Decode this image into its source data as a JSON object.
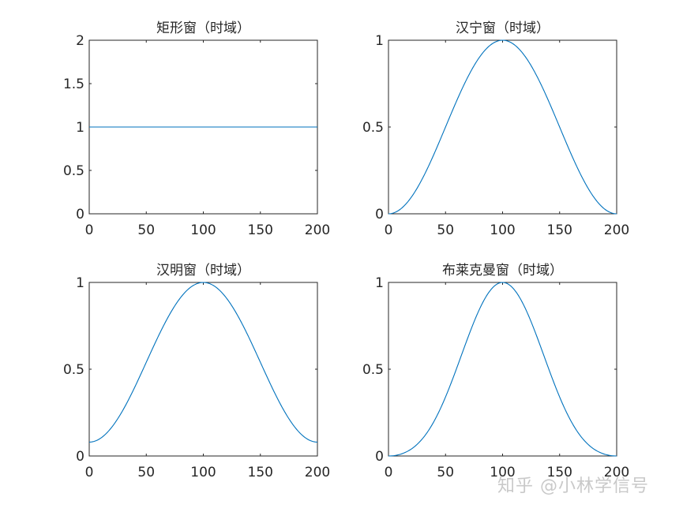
{
  "watermark": "知乎 @小林学信号",
  "chart_data": [
    {
      "type": "line",
      "title": "矩形窗（时域）",
      "window": "rectangular",
      "n_points": 201,
      "x": [
        0,
        200
      ],
      "y": [
        1,
        1
      ],
      "xlim": [
        0,
        200
      ],
      "ylim": [
        0,
        2
      ],
      "xticks": [
        "0",
        "50",
        "100",
        "150",
        "200"
      ],
      "yticks": [
        "0",
        "0.5",
        "1",
        "1.5",
        "2"
      ],
      "color": "#0072BD"
    },
    {
      "type": "line",
      "title": "汉宁窗（时域）",
      "window": "hann",
      "n_points": 201,
      "x": [
        0,
        25,
        50,
        75,
        100,
        125,
        150,
        175,
        200
      ],
      "y": [
        0,
        0.146,
        0.5,
        0.854,
        1,
        0.854,
        0.5,
        0.146,
        0
      ],
      "xlim": [
        0,
        200
      ],
      "ylim": [
        0,
        1
      ],
      "xticks": [
        "0",
        "50",
        "100",
        "150",
        "200"
      ],
      "yticks": [
        "0",
        "0.5",
        "1"
      ],
      "color": "#0072BD"
    },
    {
      "type": "line",
      "title": "汉明窗（时域）",
      "window": "hamming",
      "n_points": 201,
      "x": [
        0,
        25,
        50,
        75,
        100,
        125,
        150,
        175,
        200
      ],
      "y": [
        0.08,
        0.214,
        0.54,
        0.866,
        1,
        0.866,
        0.54,
        0.214,
        0.08
      ],
      "xlim": [
        0,
        200
      ],
      "ylim": [
        0,
        1
      ],
      "xticks": [
        "0",
        "50",
        "100",
        "150",
        "200"
      ],
      "yticks": [
        "0",
        "0.5",
        "1"
      ],
      "color": "#0072BD"
    },
    {
      "type": "line",
      "title": "布莱克曼窗（时域）",
      "window": "blackman",
      "n_points": 201,
      "x": [
        0,
        25,
        50,
        75,
        100,
        125,
        150,
        175,
        200
      ],
      "y": [
        0,
        0.066,
        0.34,
        0.774,
        1,
        0.774,
        0.34,
        0.066,
        0
      ],
      "xlim": [
        0,
        200
      ],
      "ylim": [
        0,
        1
      ],
      "xticks": [
        "0",
        "50",
        "100",
        "150",
        "200"
      ],
      "yticks": [
        "0",
        "0.5",
        "1"
      ],
      "color": "#0072BD"
    }
  ]
}
